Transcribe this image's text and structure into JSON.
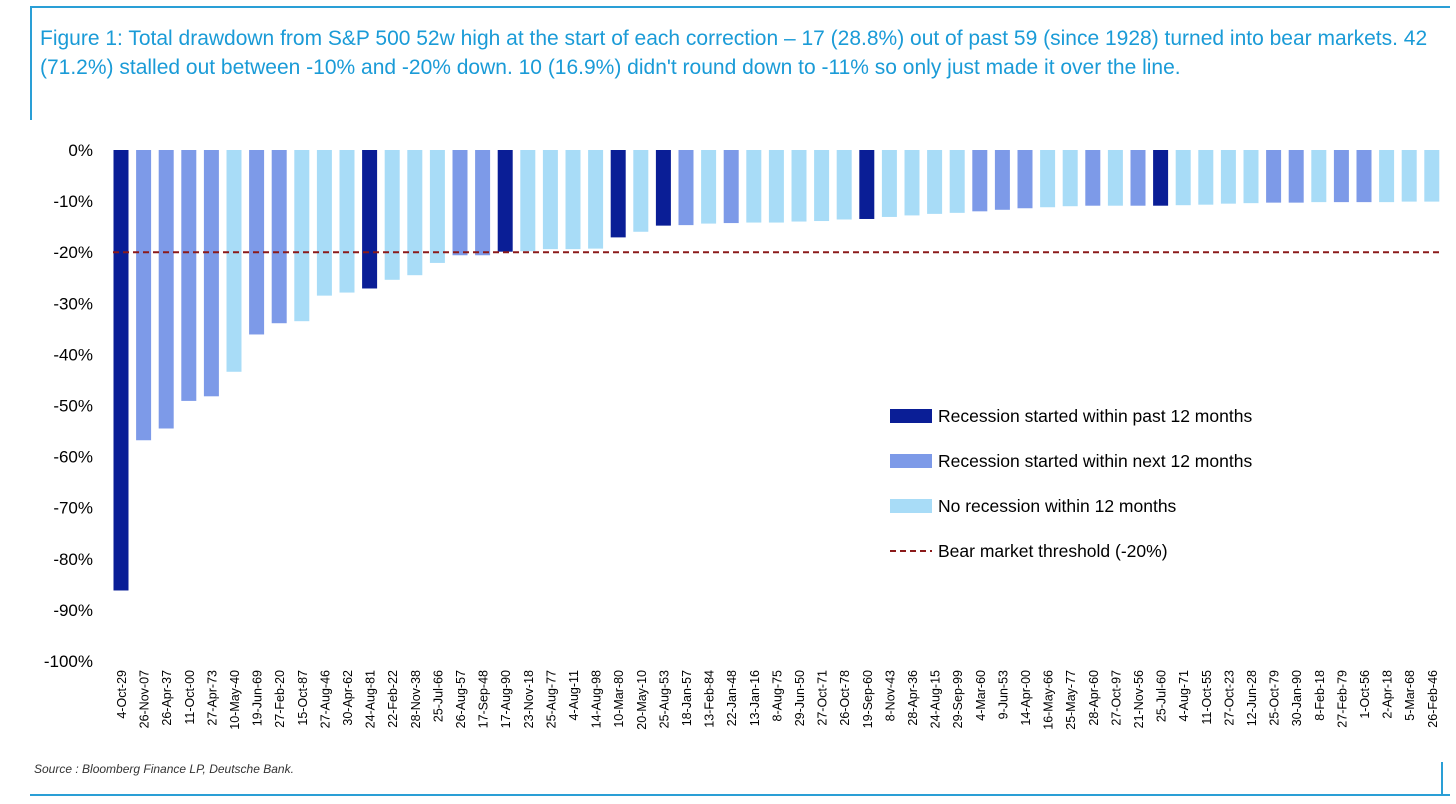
{
  "figure": {
    "title": "Figure 1: Total drawdown from S&P 500 52w high at the start of each correction – 17 (28.8%) out of past 59 (since 1928) turned into bear markets. 42 (71.2%) stalled out between -10% and -20% down. 10 (16.9%) didn't round down to -11% so only just made it over the line.",
    "source": "Source : Bloomberg Finance LP, Deutsche Bank."
  },
  "colors": {
    "past": "#0a1e96",
    "next": "#7d9ae8",
    "none": "#a8dcf7",
    "threshold": "#8b1a1a",
    "title": "#1a9bd7",
    "frame": "#2a9fd6"
  },
  "chart_data": {
    "type": "bar",
    "title": "Total drawdown from S&P 500 52w high at the start of each correction",
    "xlabel": "",
    "ylabel": "",
    "ylim": [
      -100,
      0
    ],
    "y_ticks": [
      0,
      -10,
      -20,
      -30,
      -40,
      -50,
      -60,
      -70,
      -80,
      -90,
      -100
    ],
    "y_tick_labels": [
      "0%",
      "-10%",
      "-20%",
      "-30%",
      "-40%",
      "-50%",
      "-60%",
      "-70%",
      "-80%",
      "-90%",
      "-100%"
    ],
    "categories": [
      "4-Oct-29",
      "26-Nov-07",
      "26-Apr-37",
      "11-Oct-00",
      "27-Apr-73",
      "10-May-40",
      "19-Jun-69",
      "27-Feb-20",
      "15-Oct-87",
      "27-Aug-46",
      "30-Apr-62",
      "24-Aug-81",
      "22-Feb-22",
      "28-Nov-38",
      "25-Jul-66",
      "26-Aug-57",
      "17-Sep-48",
      "17-Aug-90",
      "23-Nov-18",
      "25-Aug-77",
      "4-Aug-11",
      "14-Aug-98",
      "10-Mar-80",
      "20-May-10",
      "25-Aug-53",
      "18-Jan-57",
      "13-Feb-84",
      "22-Jan-48",
      "13-Jan-16",
      "8-Aug-75",
      "29-Jun-50",
      "27-Oct-71",
      "26-Oct-78",
      "19-Sep-60",
      "8-Nov-43",
      "28-Apr-36",
      "24-Aug-15",
      "29-Sep-99",
      "4-Mar-60",
      "9-Jun-53",
      "14-Apr-00",
      "16-May-66",
      "25-May-77",
      "28-Apr-60",
      "27-Oct-97",
      "21-Nov-56",
      "25-Jul-60",
      "4-Aug-71",
      "11-Oct-55",
      "27-Oct-23",
      "12-Jun-28",
      "25-Oct-79",
      "30-Jan-90",
      "8-Feb-18",
      "27-Feb-79",
      "1-Oct-56",
      "2-Apr-18",
      "5-Mar-68",
      "26-Feb-46"
    ],
    "values": [
      -86.2,
      -56.8,
      -54.5,
      -49.1,
      -48.2,
      -43.4,
      -36.1,
      -33.9,
      -33.5,
      -28.5,
      -27.9,
      -27.1,
      -25.4,
      -24.5,
      -22.1,
      -20.6,
      -20.6,
      -19.9,
      -19.8,
      -19.4,
      -19.4,
      -19.3,
      -17.1,
      -16.0,
      -14.8,
      -14.7,
      -14.4,
      -14.3,
      -14.2,
      -14.2,
      -14.0,
      -13.9,
      -13.6,
      -13.5,
      -13.1,
      -12.8,
      -12.5,
      -12.3,
      -12.0,
      -11.7,
      -11.4,
      -11.2,
      -11.0,
      -10.9,
      -10.9,
      -10.9,
      -10.9,
      -10.8,
      -10.7,
      -10.5,
      -10.4,
      -10.3,
      -10.3,
      -10.2,
      -10.2,
      -10.2,
      -10.2,
      -10.1,
      -10.1
    ],
    "groups": [
      "past",
      "next",
      "next",
      "next",
      "next",
      "none",
      "next",
      "next",
      "none",
      "none",
      "none",
      "past",
      "none",
      "none",
      "none",
      "next",
      "next",
      "past",
      "none",
      "none",
      "none",
      "none",
      "past",
      "none",
      "past",
      "next",
      "none",
      "next",
      "none",
      "none",
      "none",
      "none",
      "none",
      "past",
      "none",
      "none",
      "none",
      "none",
      "next",
      "next",
      "next",
      "none",
      "none",
      "next",
      "none",
      "next",
      "past",
      "none",
      "none",
      "none",
      "none",
      "next",
      "next",
      "none",
      "next",
      "next",
      "none",
      "none",
      "none"
    ],
    "threshold": -20,
    "legend_position": "center-right",
    "legend": [
      {
        "key": "past",
        "label": "Recession started within past 12 months"
      },
      {
        "key": "next",
        "label": "Recession started within next 12 months"
      },
      {
        "key": "none",
        "label": "No recession within 12 months"
      },
      {
        "key": "threshold",
        "label": "Bear market threshold (-20%)"
      }
    ]
  }
}
